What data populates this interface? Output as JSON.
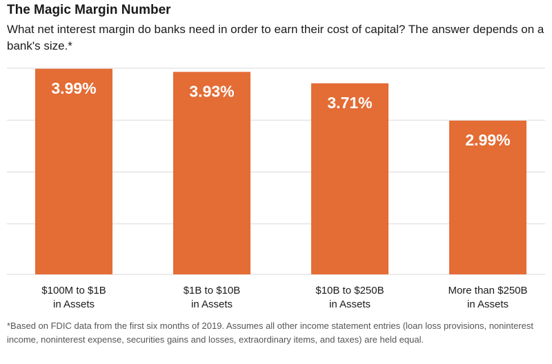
{
  "header": {
    "title": "The Magic Margin Number",
    "subtitle": "What net interest margin do banks need in order to earn their cost of capital? The answer depends on a bank's size.*"
  },
  "footnote": "*Based on FDIC data from the first six months of 2019. Assumes all other income statement entries (loan loss provisions, noninterest income, noninterest expense, securities gains and losses, extraordinary items, and taxes) are held equal.",
  "colors": {
    "bar": "#E46C35",
    "grid": "#D9D9D9"
  },
  "chart_data": {
    "type": "bar",
    "categories": [
      [
        "$100M to $1B",
        "in Assets"
      ],
      [
        "$1B to $10B",
        "in Assets"
      ],
      [
        "$10B to $250B",
        "in Assets"
      ],
      [
        "More than $250B",
        "in Assets"
      ]
    ],
    "values": [
      3.99,
      3.93,
      3.71,
      2.99
    ],
    "data_labels": [
      "3.99%",
      "3.93%",
      "3.71%",
      "2.99%"
    ],
    "ylim": [
      0,
      4.0
    ],
    "grid": true,
    "legend": "none"
  }
}
